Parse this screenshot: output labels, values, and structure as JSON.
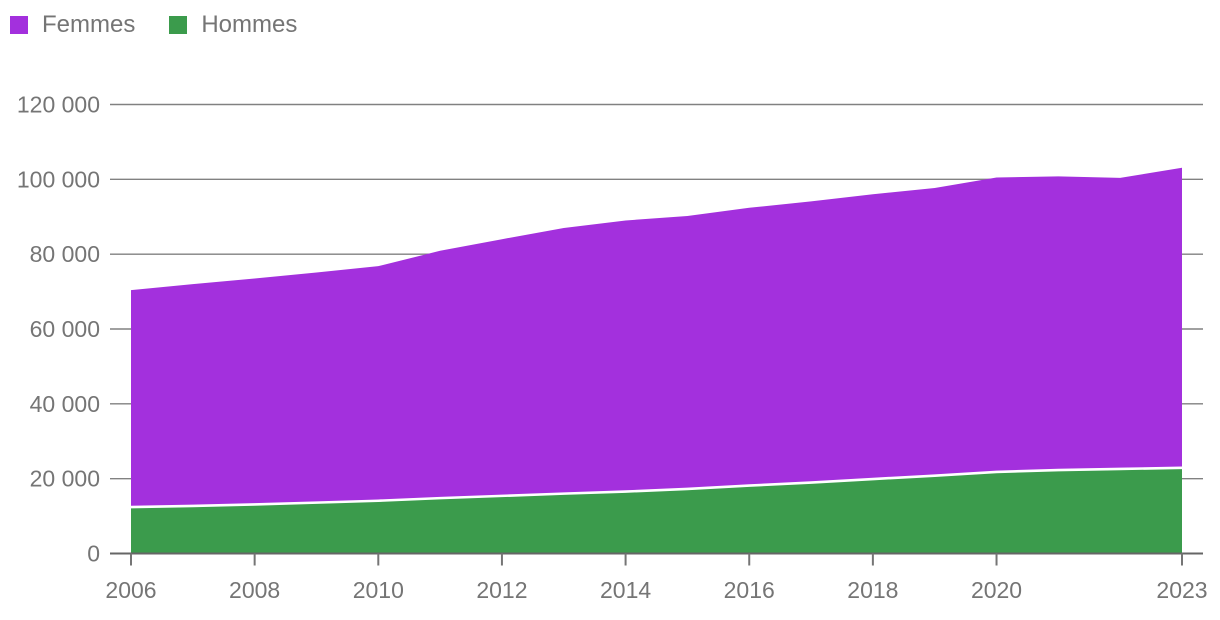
{
  "legend": {
    "items": [
      {
        "label": "Femmes",
        "color": "#a330dd"
      },
      {
        "label": "Hommes",
        "color": "#3b9b4c"
      }
    ]
  },
  "colors": {
    "femmes_area": "#a330dd",
    "hommes_area": "#3b9b4c",
    "series_separator": "#ffffff",
    "gridline": "#818181",
    "axis_line": "#666666",
    "tick": "#757575",
    "label_text": "#757575",
    "background": "#ffffff"
  },
  "chart_data": {
    "type": "area",
    "stacked": true,
    "stack_order_bottom_to_top": [
      "Hommes",
      "Femmes"
    ],
    "title": "",
    "xlabel": "",
    "ylabel": "",
    "grid": "horizontal",
    "legend_position": "top-left",
    "x": [
      2006,
      2007,
      2008,
      2009,
      2010,
      2011,
      2012,
      2013,
      2014,
      2015,
      2016,
      2017,
      2018,
      2019,
      2020,
      2021,
      2022,
      2023
    ],
    "series": [
      {
        "name": "Femmes",
        "color": "#a330dd",
        "values": [
          58000,
          59300,
          60400,
          61500,
          62700,
          66100,
          68600,
          71000,
          72450,
          72950,
          74250,
          75150,
          76100,
          76900,
          78700,
          78500,
          77800,
          80200
        ]
      },
      {
        "name": "Hommes",
        "color": "#3b9b4c",
        "values": [
          12400,
          12700,
          13100,
          13600,
          14100,
          14800,
          15400,
          16000,
          16550,
          17250,
          18150,
          18950,
          19900,
          20800,
          21800,
          22300,
          22600,
          22900
        ]
      }
    ],
    "stacked_totals": [
      70400,
      72000,
      73500,
      75100,
      76800,
      80900,
      84000,
      87000,
      89000,
      90200,
      92400,
      94100,
      96000,
      97700,
      100500,
      100800,
      100400,
      103100
    ],
    "y_axis": {
      "range": [
        0,
        120000
      ],
      "ticks": [
        0,
        20000,
        40000,
        60000,
        80000,
        100000,
        120000
      ],
      "tick_labels": [
        "0",
        "20 000",
        "40 000",
        "60 000",
        "80 000",
        "100 000",
        "120 000"
      ]
    },
    "x_axis": {
      "range": [
        2006,
        2023
      ],
      "tick_years": [
        2006,
        2008,
        2010,
        2012,
        2014,
        2016,
        2018,
        2020,
        2023
      ],
      "tick_labels": [
        "2006",
        "2008",
        "2010",
        "2012",
        "2014",
        "2016",
        "2018",
        "2020",
        "2023"
      ]
    }
  }
}
